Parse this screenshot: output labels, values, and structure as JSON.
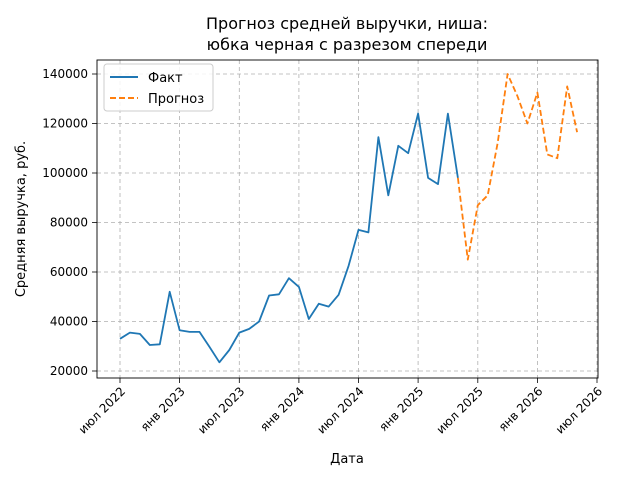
{
  "chart_data": {
    "type": "line",
    "title_lines": [
      "Прогноз средней выручки, ниша:",
      "юбка черная с разрезом спереди"
    ],
    "xlabel": "Дата",
    "ylabel": "Средняя выручка, руб.",
    "x_start": "2022-07",
    "x_end": "2026-07",
    "ylim": [
      17500,
      146000
    ],
    "grid": true,
    "legend_position": "top-left",
    "x_ticks": [
      {
        "date": "2022-07",
        "label": "июл 2022"
      },
      {
        "date": "2023-01",
        "label": "янв 2023"
      },
      {
        "date": "2023-07",
        "label": "июл 2023"
      },
      {
        "date": "2024-01",
        "label": "янв 2024"
      },
      {
        "date": "2024-07",
        "label": "июл 2024"
      },
      {
        "date": "2025-01",
        "label": "янв 2025"
      },
      {
        "date": "2025-07",
        "label": "июл 2025"
      },
      {
        "date": "2026-01",
        "label": "янв 2026"
      },
      {
        "date": "2026-07",
        "label": "июл 2026"
      }
    ],
    "y_ticks": [
      {
        "value": 20000,
        "label": "20000"
      },
      {
        "value": 40000,
        "label": "40000"
      },
      {
        "value": 60000,
        "label": "60000"
      },
      {
        "value": 80000,
        "label": "80000"
      },
      {
        "value": 100000,
        "label": "100000"
      },
      {
        "value": 120000,
        "label": "120000"
      },
      {
        "value": 140000,
        "label": "140000"
      }
    ],
    "series": [
      {
        "name": "Факт",
        "color": "#1f77b4",
        "dash": "solid",
        "points": [
          {
            "x": "2022-07",
            "y": 33000
          },
          {
            "x": "2022-08",
            "y": 35500
          },
          {
            "x": "2022-09",
            "y": 35000
          },
          {
            "x": "2022-10",
            "y": 30500
          },
          {
            "x": "2022-11",
            "y": 30800
          },
          {
            "x": "2022-12",
            "y": 52000
          },
          {
            "x": "2023-01",
            "y": 36500
          },
          {
            "x": "2023-02",
            "y": 35800
          },
          {
            "x": "2023-03",
            "y": 35800
          },
          {
            "x": "2023-04",
            "y": 29800
          },
          {
            "x": "2023-05",
            "y": 23500
          },
          {
            "x": "2023-06",
            "y": 28500
          },
          {
            "x": "2023-07",
            "y": 35500
          },
          {
            "x": "2023-08",
            "y": 37000
          },
          {
            "x": "2023-09",
            "y": 40000
          },
          {
            "x": "2023-10",
            "y": 50500
          },
          {
            "x": "2023-11",
            "y": 51000
          },
          {
            "x": "2023-12",
            "y": 57500
          },
          {
            "x": "2024-01",
            "y": 54000
          },
          {
            "x": "2024-02",
            "y": 41000
          },
          {
            "x": "2024-03",
            "y": 47200
          },
          {
            "x": "2024-04",
            "y": 46000
          },
          {
            "x": "2024-05",
            "y": 50800
          },
          {
            "x": "2024-06",
            "y": 62500
          },
          {
            "x": "2024-07",
            "y": 77000
          },
          {
            "x": "2024-08",
            "y": 76000
          },
          {
            "x": "2024-09",
            "y": 114500
          },
          {
            "x": "2024-10",
            "y": 91000
          },
          {
            "x": "2024-11",
            "y": 111000
          },
          {
            "x": "2024-12",
            "y": 108000
          },
          {
            "x": "2025-01",
            "y": 124000
          },
          {
            "x": "2025-02",
            "y": 98000
          },
          {
            "x": "2025-03",
            "y": 95500
          },
          {
            "x": "2025-04",
            "y": 124000
          },
          {
            "x": "2025-05",
            "y": 98000
          }
        ]
      },
      {
        "name": "Прогноз",
        "color": "#ff7f0e",
        "dash": "dashed",
        "points": [
          {
            "x": "2025-05",
            "y": 98000
          },
          {
            "x": "2025-06",
            "y": 65000
          },
          {
            "x": "2025-07",
            "y": 87000
          },
          {
            "x": "2025-08",
            "y": 91000
          },
          {
            "x": "2025-09",
            "y": 112000
          },
          {
            "x": "2025-10",
            "y": 140000
          },
          {
            "x": "2025-11",
            "y": 131000
          },
          {
            "x": "2025-12",
            "y": 120000
          },
          {
            "x": "2026-01",
            "y": 132500
          },
          {
            "x": "2026-02",
            "y": 107500
          },
          {
            "x": "2026-03",
            "y": 106000
          },
          {
            "x": "2026-04",
            "y": 135000
          },
          {
            "x": "2026-05",
            "y": 116500
          }
        ]
      }
    ]
  }
}
